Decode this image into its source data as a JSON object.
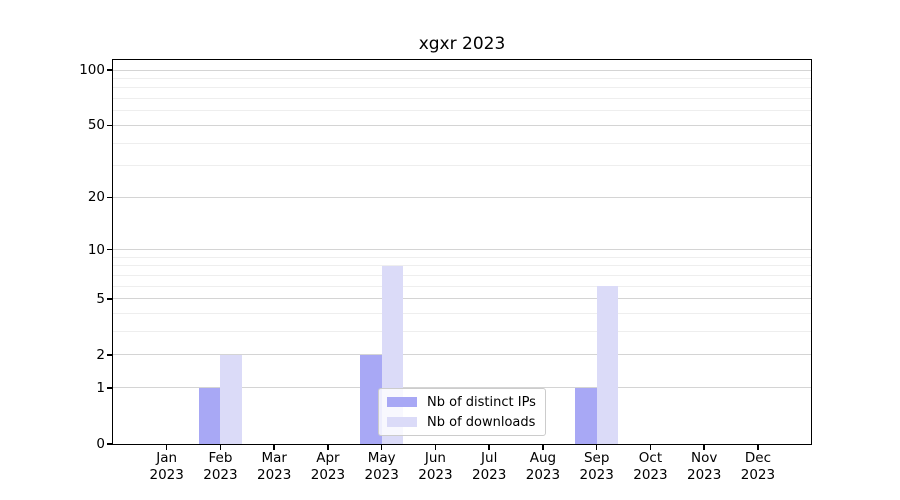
{
  "chart_data": {
    "type": "bar",
    "title": "xgxr 2023",
    "months": [
      "Jan",
      "Feb",
      "Mar",
      "Apr",
      "May",
      "Jun",
      "Jul",
      "Aug",
      "Sep",
      "Oct",
      "Nov",
      "Dec"
    ],
    "year_label": "2023",
    "series": [
      {
        "name": "Nb of distinct IPs",
        "color": "#a8a8f5",
        "values": [
          0,
          1,
          0,
          0,
          2,
          0,
          0,
          0,
          1,
          0,
          0,
          0
        ]
      },
      {
        "name": "Nb of downloads",
        "color": "#dbdbf8",
        "values": [
          0,
          2,
          0,
          0,
          8,
          0,
          0,
          0,
          6,
          0,
          0,
          0
        ]
      }
    ],
    "yticks": [
      0,
      1,
      2,
      5,
      10,
      20,
      50,
      100
    ],
    "minor_yticks": [
      3,
      4,
      6,
      7,
      8,
      9,
      30,
      40,
      60,
      70,
      80,
      90
    ],
    "yscale": "log10(1+x)",
    "ylim": [
      0,
      110
    ],
    "grid": true,
    "legend_position": "lower center inside axes",
    "colors": {
      "axis": "#000000",
      "grid_major": "#d4d4d4",
      "grid_minor": "#eeeeee",
      "background": "#ffffff"
    }
  }
}
